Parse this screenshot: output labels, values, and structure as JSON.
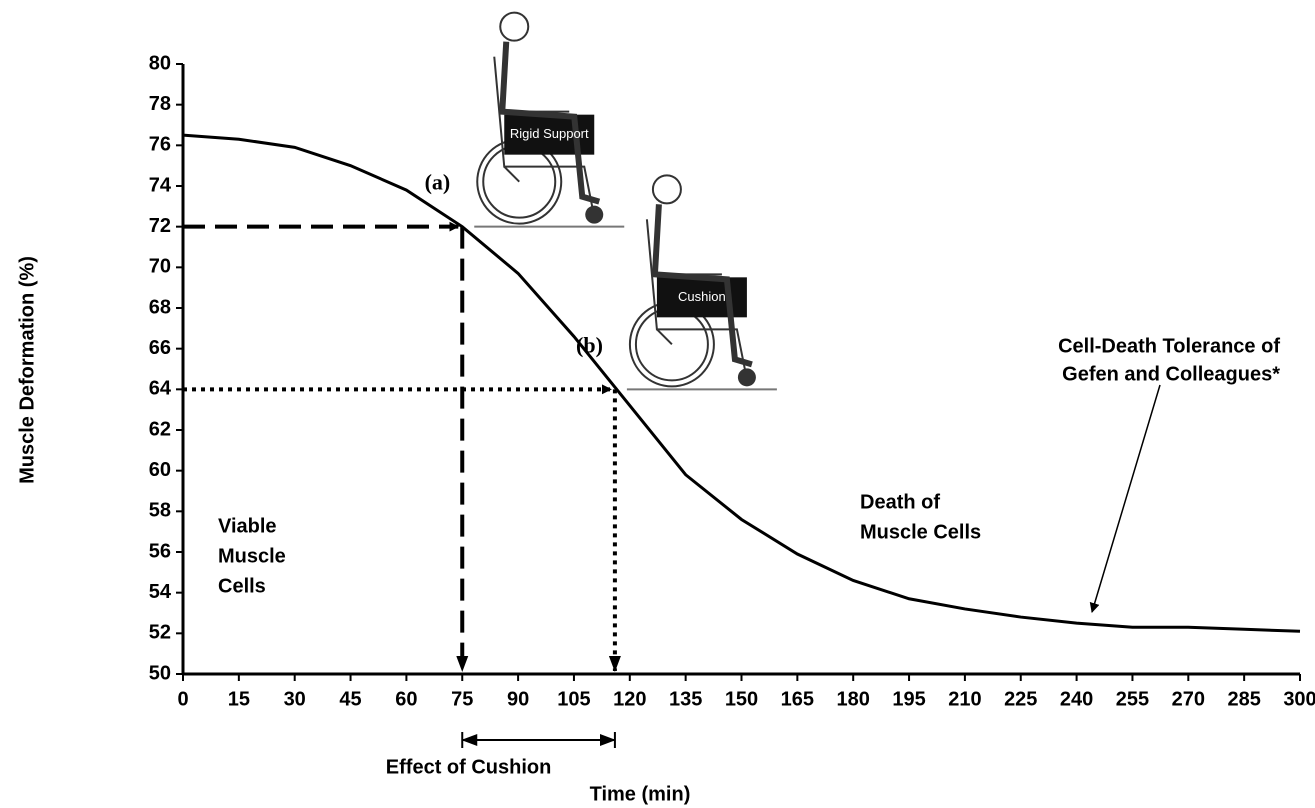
{
  "chart_data": {
    "type": "line",
    "x_label": "Time (min)",
    "y_label": "Muscle Deformation (%)",
    "x": [
      0,
      15,
      30,
      45,
      60,
      75,
      90,
      105,
      120,
      135,
      150,
      165,
      180,
      195,
      210,
      225,
      240,
      255,
      270,
      285,
      300
    ],
    "series": [
      {
        "color": "#000000",
        "values": [
          76.5,
          76.3,
          75.9,
          75.0,
          73.8,
          72.0,
          69.7,
          66.6,
          63.2,
          59.8,
          57.6,
          55.9,
          54.6,
          53.7,
          53.2,
          52.8,
          52.5,
          52.3,
          52.3,
          52.2,
          52.1
        ]
      }
    ],
    "xlim": [
      0,
      300
    ],
    "ylim": [
      50,
      80
    ],
    "xticks": [
      0,
      15,
      30,
      45,
      60,
      75,
      90,
      105,
      120,
      135,
      150,
      165,
      180,
      195,
      210,
      225,
      240,
      255,
      270,
      285,
      300
    ],
    "yticks": [
      50,
      52,
      54,
      56,
      58,
      60,
      62,
      64,
      66,
      68,
      70,
      72,
      74,
      76,
      78,
      80
    ],
    "grid": false,
    "markers": [
      {
        "label": "(a)",
        "x": 75,
        "y": 72,
        "style": "dashed",
        "image_label": "Rigid Support"
      },
      {
        "label": "(b)",
        "x": 116,
        "y": 64,
        "style": "dotted",
        "image_label": "Cushion"
      }
    ],
    "range_label": "Effect of Cushion",
    "region_labels": [
      [
        "Viable",
        "Muscle",
        "Cells"
      ],
      [
        "Death of",
        "Muscle Cells"
      ]
    ],
    "note": [
      "Cell-Death Tolerance of",
      "Gefen and Colleagues*"
    ]
  }
}
